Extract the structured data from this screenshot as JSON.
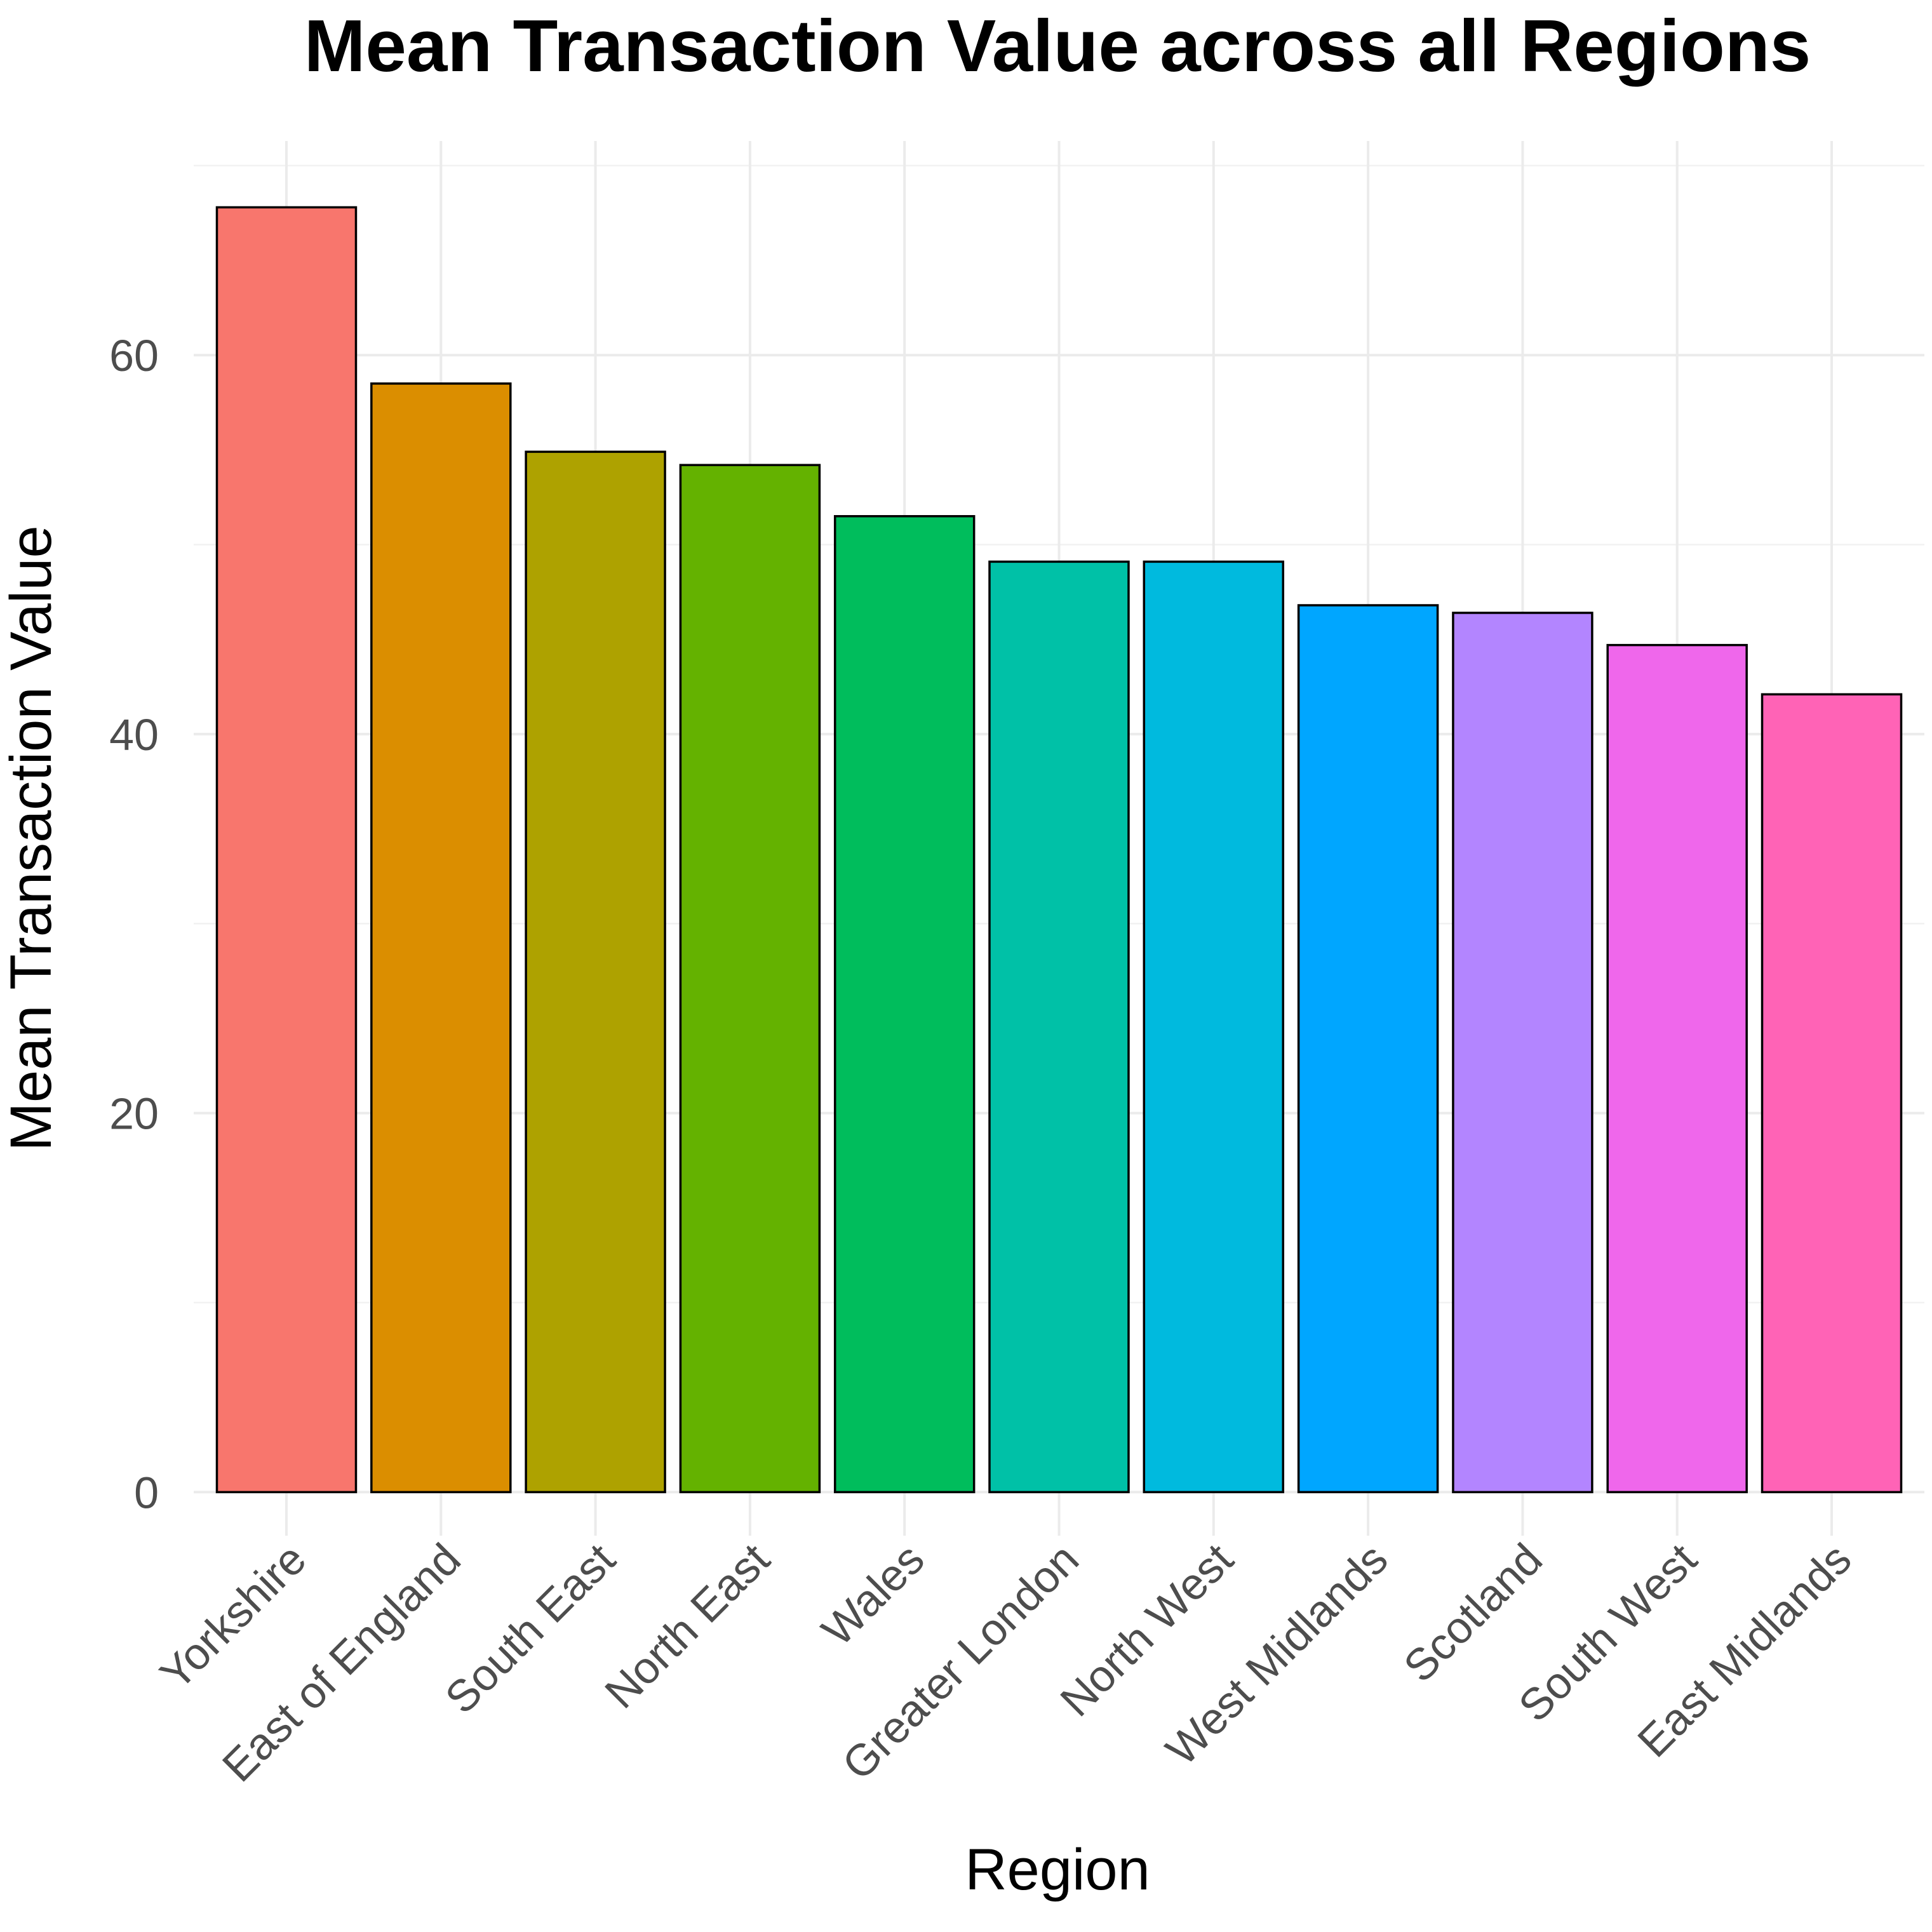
{
  "chart_data": {
    "type": "bar",
    "title": "Mean Transaction Value across all Regions",
    "xlabel": "Region",
    "ylabel": "Mean Transaction Value",
    "categories": [
      "Yorkshire",
      "East of England",
      "South East",
      "North East",
      "Wales",
      "Greater London",
      "North West",
      "West Midlands",
      "Scotland",
      "South West",
      "East Midlands"
    ],
    "values": [
      67.8,
      58.5,
      54.9,
      54.2,
      51.5,
      49.1,
      49.1,
      46.8,
      46.4,
      44.7,
      42.1
    ],
    "colors": [
      "#F8766D",
      "#DB8E00",
      "#AEA200",
      "#64B200",
      "#00BD5C",
      "#00C1A7",
      "#00BADE",
      "#00A6FF",
      "#B385FF",
      "#EF67EB",
      "#FF63B6"
    ],
    "yticks": [
      0,
      20,
      40,
      60
    ],
    "ylim": [
      -2.3,
      71.3
    ],
    "grid": true,
    "legend": "none"
  }
}
